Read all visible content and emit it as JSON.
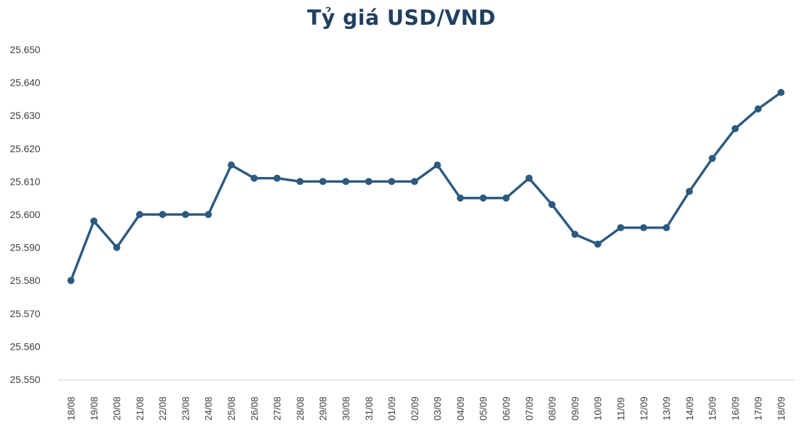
{
  "chart_data": {
    "type": "line",
    "title": "Tỷ giá USD/VND",
    "xlabel": "",
    "ylabel": "",
    "ylim": [
      25550,
      25650
    ],
    "ytick_step": 10,
    "ytick_labels": [
      "25.550",
      "25.560",
      "25.570",
      "25.580",
      "25.590",
      "25.600",
      "25.610",
      "25.620",
      "25.630",
      "25.640",
      "25.650"
    ],
    "grid": false,
    "legend": "none",
    "line_color": "#2d5a80",
    "categories": [
      "18/08",
      "19/08",
      "20/08",
      "21/08",
      "22/08",
      "23/08",
      "24/08",
      "25/08",
      "26/08",
      "27/08",
      "28/08",
      "29/08",
      "30/08",
      "31/08",
      "01/09",
      "02/09",
      "03/09",
      "04/09",
      "05/09",
      "06/09",
      "07/09",
      "08/09",
      "09/09",
      "10/09",
      "11/09",
      "12/09",
      "13/09",
      "14/09",
      "15/09",
      "16/09",
      "17/09",
      "18/09"
    ],
    "series": [
      {
        "values": [
          25580,
          25598,
          25590,
          25600,
          25600,
          25600,
          25600,
          25615,
          25611,
          25611,
          25610,
          25610,
          25610,
          25610,
          25610,
          25610,
          25615,
          25605,
          25605,
          25605,
          25611,
          25603,
          25594,
          25591,
          25596,
          25596,
          25596,
          25607,
          25617,
          25626,
          25632,
          25637
        ]
      }
    ]
  }
}
